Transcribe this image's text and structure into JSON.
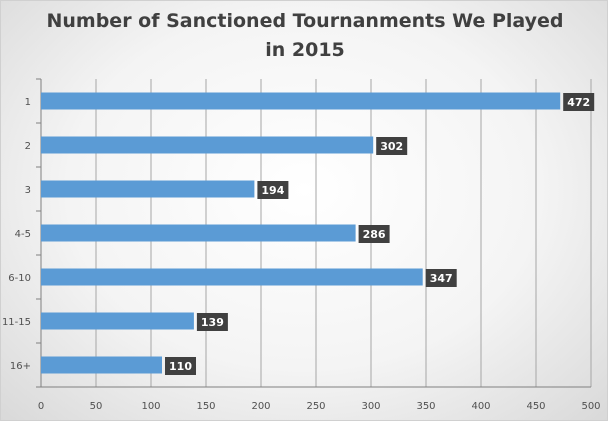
{
  "chart_data": {
    "type": "bar",
    "orientation": "horizontal",
    "title": "Number of Sanctioned Tournanments We Played in 2015",
    "title_lines": [
      "Number of Sanctioned Tournanments We Played",
      "in 2015"
    ],
    "categories": [
      "1",
      "2",
      "3",
      "4-5",
      "6-10",
      "11-15",
      "16+"
    ],
    "values": [
      472,
      302,
      194,
      286,
      347,
      139,
      110
    ],
    "data_labels": [
      "472",
      "302",
      "194",
      "286",
      "347",
      "139",
      "110"
    ],
    "xlabel": "",
    "ylabel": "",
    "xlim": [
      0,
      500
    ],
    "x_ticks": [
      0,
      50,
      100,
      150,
      200,
      250,
      300,
      350,
      400,
      450,
      500
    ],
    "grid": "vertical",
    "legend": "none",
    "colors": {
      "bar": "#5b9bd5",
      "label_bg": "#404040",
      "grid": "#a6a6a6"
    }
  }
}
